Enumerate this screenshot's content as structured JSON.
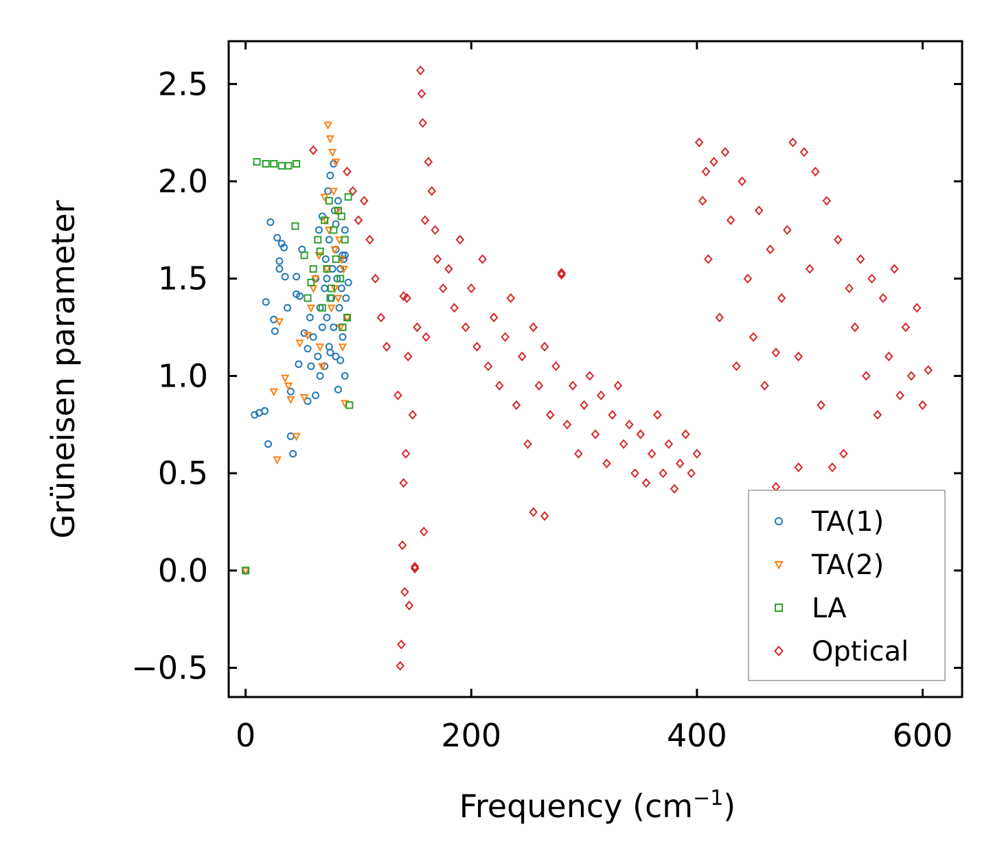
{
  "chart_data": {
    "type": "scatter",
    "title": "",
    "xlabel": "Frequency (cm",
    "xlabel_sup": "−1",
    "xlabel_close": ")",
    "ylabel": "Grüneisen parameter",
    "xlim": [
      -15,
      635
    ],
    "ylim": [
      -0.65,
      2.72
    ],
    "xticks": [
      0,
      200,
      400,
      600
    ],
    "xtick_labels": [
      "0",
      "200",
      "400",
      "600"
    ],
    "yticks": [
      -0.5,
      0.0,
      0.5,
      1.0,
      1.5,
      2.0,
      2.5
    ],
    "ytick_labels": [
      "−0.5",
      "0.0",
      "0.5",
      "1.0",
      "1.5",
      "2.0",
      "2.5"
    ],
    "grid": false,
    "legend_position": "bottom-right",
    "series": [
      {
        "name": "TA(1)",
        "marker": "circle",
        "color": "#1f77b4",
        "x": [
          0,
          8,
          12,
          17,
          20,
          22,
          25,
          28,
          30,
          32,
          35,
          37,
          40,
          40,
          42,
          45,
          47,
          50,
          52,
          55,
          57,
          58,
          60,
          62,
          64,
          65,
          66,
          68,
          68,
          70,
          70,
          71,
          72,
          73,
          74,
          74,
          75,
          76,
          77,
          78,
          78,
          79,
          80,
          80,
          81,
          82,
          83,
          84,
          85,
          86,
          87,
          88,
          88,
          89,
          90,
          30,
          45,
          55,
          62,
          75,
          82,
          86,
          18,
          26,
          34,
          48,
          66,
          72,
          80,
          84,
          88,
          91
        ],
        "y": [
          0.0,
          0.8,
          0.81,
          0.82,
          0.65,
          1.79,
          1.29,
          1.71,
          1.59,
          1.68,
          1.51,
          1.35,
          0.92,
          0.69,
          0.6,
          1.51,
          1.06,
          1.65,
          1.22,
          1.14,
          1.3,
          1.05,
          1.2,
          1.5,
          1.1,
          1.75,
          1.0,
          1.82,
          1.25,
          1.45,
          1.05,
          1.6,
          1.3,
          1.95,
          1.7,
          1.15,
          2.03,
          1.4,
          1.55,
          2.09,
          1.25,
          1.85,
          1.65,
          1.1,
          1.5,
          1.9,
          1.35,
          1.55,
          1.45,
          1.2,
          1.6,
          1.75,
          1.0,
          1.4,
          1.3,
          1.55,
          1.42,
          0.87,
          0.9,
          1.12,
          0.93,
          1.62,
          1.38,
          1.23,
          1.66,
          1.41,
          1.35,
          1.5,
          1.78,
          1.08,
          1.62,
          1.48
        ]
      },
      {
        "name": "TA(2)",
        "marker": "triangle-down",
        "color": "#ff7f0e",
        "x": [
          0,
          28,
          30,
          35,
          40,
          45,
          48,
          52,
          55,
          60,
          62,
          65,
          68,
          70,
          72,
          73,
          74,
          75,
          76,
          77,
          78,
          79,
          80,
          81,
          82,
          83,
          84,
          85,
          86,
          88,
          90,
          25,
          38,
          58,
          66,
          71,
          79,
          87
        ],
        "y": [
          0.0,
          0.57,
          1.28,
          0.99,
          0.88,
          0.69,
          1.17,
          0.89,
          1.21,
          1.45,
          1.5,
          1.62,
          1.05,
          1.92,
          1.55,
          2.29,
          1.75,
          2.22,
          1.35,
          2.15,
          1.95,
          1.65,
          2.1,
          1.85,
          1.4,
          1.7,
          1.25,
          1.6,
          1.15,
          0.86,
          1.3,
          0.92,
          0.95,
          1.35,
          1.15,
          1.8,
          1.45,
          1.55
        ]
      },
      {
        "name": "LA",
        "marker": "square",
        "color": "#2ca02c",
        "x": [
          0,
          10,
          18,
          25,
          32,
          38,
          45,
          52,
          55,
          60,
          64,
          68,
          70,
          72,
          74,
          76,
          78,
          80,
          82,
          84,
          86,
          88,
          90,
          92,
          44,
          58,
          66,
          75,
          85,
          91
        ],
        "y": [
          0.0,
          2.1,
          2.09,
          2.09,
          2.08,
          2.08,
          2.09,
          1.62,
          1.4,
          1.55,
          1.7,
          1.35,
          1.8,
          1.55,
          1.9,
          1.45,
          1.75,
          1.6,
          1.85,
          1.5,
          1.25,
          1.7,
          1.3,
          0.85,
          1.77,
          1.48,
          1.64,
          1.4,
          1.82,
          1.92
        ]
      },
      {
        "name": "Optical",
        "marker": "diamond",
        "color": "#d62728",
        "x": [
          60,
          90,
          95,
          100,
          105,
          110,
          115,
          120,
          125,
          135,
          137,
          138,
          139,
          140,
          141,
          142,
          143,
          144,
          145,
          148,
          150,
          152,
          155,
          156,
          157,
          158,
          159,
          160,
          162,
          165,
          168,
          170,
          175,
          180,
          185,
          190,
          195,
          200,
          205,
          210,
          215,
          220,
          225,
          230,
          235,
          240,
          245,
          250,
          255,
          260,
          265,
          270,
          275,
          280,
          285,
          290,
          295,
          300,
          305,
          310,
          315,
          320,
          325,
          330,
          335,
          340,
          345,
          350,
          355,
          360,
          365,
          370,
          375,
          380,
          385,
          390,
          395,
          400,
          402,
          405,
          408,
          410,
          415,
          420,
          425,
          430,
          435,
          440,
          445,
          450,
          455,
          460,
          465,
          470,
          475,
          480,
          485,
          490,
          495,
          500,
          505,
          510,
          515,
          520,
          525,
          530,
          535,
          540,
          545,
          550,
          555,
          560,
          565,
          570,
          575,
          580,
          585,
          590,
          595,
          600,
          605,
          255,
          265,
          280,
          140,
          150,
          470,
          490
        ],
        "y": [
          2.16,
          2.05,
          1.95,
          1.8,
          1.9,
          1.7,
          1.5,
          1.3,
          1.15,
          0.9,
          -0.49,
          -0.38,
          0.13,
          0.45,
          -0.11,
          0.6,
          1.4,
          1.1,
          -0.18,
          0.8,
          0.02,
          1.25,
          2.57,
          2.45,
          2.3,
          0.2,
          1.8,
          1.2,
          2.1,
          1.95,
          1.75,
          1.6,
          1.45,
          1.55,
          1.35,
          1.7,
          1.25,
          1.45,
          1.15,
          1.6,
          1.05,
          1.3,
          0.95,
          1.2,
          1.4,
          0.85,
          1.1,
          0.65,
          1.25,
          0.95,
          1.15,
          0.8,
          1.05,
          1.53,
          0.75,
          0.95,
          0.6,
          0.85,
          1.0,
          0.7,
          0.9,
          0.55,
          0.8,
          0.95,
          0.65,
          0.75,
          0.5,
          0.7,
          0.45,
          0.6,
          0.8,
          0.5,
          0.65,
          0.42,
          0.55,
          0.7,
          0.5,
          0.6,
          2.2,
          1.9,
          2.05,
          1.6,
          2.1,
          1.3,
          2.15,
          1.8,
          1.05,
          2.0,
          1.5,
          1.2,
          1.85,
          0.95,
          1.65,
          0.43,
          1.4,
          1.75,
          2.2,
          1.1,
          2.15,
          1.55,
          2.05,
          0.85,
          1.9,
          0.53,
          1.7,
          0.6,
          1.45,
          1.25,
          1.6,
          1.0,
          1.5,
          0.8,
          1.4,
          1.1,
          1.55,
          0.9,
          1.25,
          1.0,
          1.35,
          0.85,
          1.03,
          0.3,
          0.28,
          1.52,
          1.41,
          0.01,
          1.12,
          0.53
        ]
      }
    ]
  },
  "legend": {
    "items": [
      "TA(1)",
      "TA(2)",
      "LA",
      "Optical"
    ]
  }
}
